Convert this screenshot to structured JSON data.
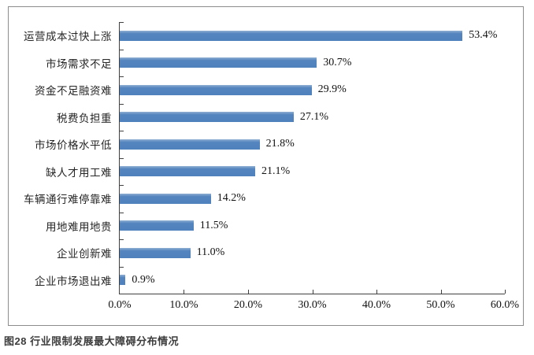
{
  "chart_data": {
    "type": "bar",
    "orientation": "horizontal",
    "categories": [
      "运营成本过快上涨",
      "市场需求不足",
      "资金不足融资难",
      "税费负担重",
      "市场价格水平低",
      "缺人才用工难",
      "车辆通行难停靠难",
      "用地难用地贵",
      "企业创新难",
      "企业市场退出难"
    ],
    "values": [
      53.4,
      30.7,
      29.9,
      27.1,
      21.8,
      21.1,
      14.2,
      11.5,
      11.0,
      0.9
    ],
    "value_labels": [
      "53.4%",
      "30.7%",
      "29.9%",
      "27.1%",
      "21.8%",
      "21.1%",
      "14.2%",
      "11.5%",
      "11.0%",
      "0.9%"
    ],
    "title": "",
    "xlabel": "",
    "ylabel": "",
    "xlim": [
      0,
      60
    ],
    "x_ticks": [
      "0.0%",
      "10.0%",
      "20.0%",
      "30.0%",
      "40.0%",
      "50.0%",
      "60.0%"
    ],
    "bar_color": "#4F81BD",
    "axis_color": "#404040",
    "grid": "off",
    "legend": "none"
  },
  "caption": "图28 行业限制发展最大障碍分布情况"
}
